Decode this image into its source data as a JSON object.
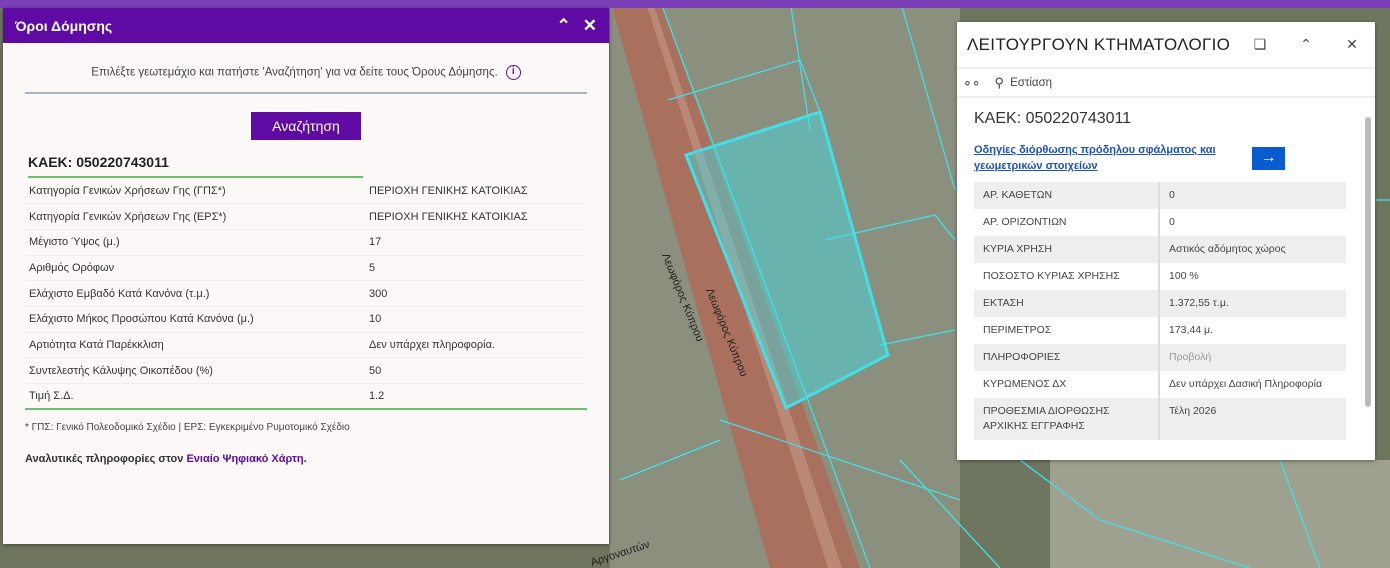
{
  "map": {
    "street_1": "Λεωφόρος Κύπρου",
    "street_2": "Αργοναυτών",
    "parcel_color": "#40e0e8",
    "road_color": "#9a5a4a"
  },
  "left_panel": {
    "title": "Όροι Δόμησης",
    "collapse_icon": "double-chevron-up",
    "close_icon": "close",
    "intro": "Επιλέξτε γεωτεμάχιο και πατήστε 'Αναζήτηση' για να δείτε τους Όρους Δόμησης.",
    "search_button": "Αναζήτηση",
    "kaek": "ΚΑΕΚ: 050220743011",
    "rows": [
      {
        "label": "Κατηγορία Γενικών Χρήσεων Γης (ΓΠΣ*)",
        "value": "ΠΕΡΙΟΧΗ ΓΕΝΙΚΗΣ ΚΑΤΟΙΚΙΑΣ"
      },
      {
        "label": "Κατηγορία Γενικών Χρήσεων Γης (ΕΡΣ*)",
        "value": "ΠΕΡΙΟΧΗ ΓΕΝΙΚΗΣ ΚΑΤΟΙΚΙΑΣ"
      },
      {
        "label": "Μέγιστο Ύψος (μ.)",
        "value": "17"
      },
      {
        "label": "Αριθμός Ορόφων",
        "value": "5"
      },
      {
        "label": "Ελάχιστο Εμβαδό Κατά Κανόνα (τ.μ.)",
        "value": "300"
      },
      {
        "label": "Ελάχιστο Μήκος Προσώπου Κατά Κανόνα (μ.)",
        "value": "10"
      },
      {
        "label": "Αρτιότητα Κατά Παρέκκλιση",
        "value": "Δεν υπάρχει πληροφορία."
      },
      {
        "label": "Συντελεστής Κάλυψης Οικοπέδου (%)",
        "value": "50"
      },
      {
        "label": "Τιμή Σ.Δ.",
        "value": "1.2"
      }
    ],
    "footnote": "* ΓΠΣ: Γενικό Πολεοδομικό Σχέδιο | ΕΡΣ: Εγκεκριμένο Ρυμοτομικό Σχέδιο",
    "more_prefix": "Αναλυτικές πληροφορίες στον ",
    "more_link": "Ενιαίο Ψηφιακό Χάρτη",
    "more_suffix": ".",
    "accent": "#5e0aa3"
  },
  "right_panel": {
    "title": "ΛΕΙΤΟΥΡΓΟΥΝ ΚΤΗΜΑΤΟΛΟΓΙΟ",
    "zoom_label": "Εστίαση",
    "kaek": "ΚΑΕΚ: 050220743011",
    "link": "Οδηγίες διόρθωσης πρόδηλου σφάλματος και γεωμετρικών στοιχείων",
    "arrow": "→",
    "rows": [
      {
        "label": "ΑΡ. ΚΑΘΕΤΩΝ",
        "value": "0"
      },
      {
        "label": "ΑΡ. ΟΡΙΖΟΝΤΙΩΝ",
        "value": "0"
      },
      {
        "label": "ΚΥΡΙΑ ΧΡΗΣΗ",
        "value": "Αστικός αδόμητος χώρος"
      },
      {
        "label": "ΠΟΣΟΣΤΟ ΚΥΡΙΑΣ ΧΡΗΣΗΣ",
        "value": "100 %"
      },
      {
        "label": "ΕΚΤΑΣΗ",
        "value": "1.372,55 τ.μ."
      },
      {
        "label": "ΠΕΡΙΜΕΤΡΟΣ",
        "value": "173,44 μ."
      },
      {
        "label": "ΠΛΗΡΟΦΟΡΙΕΣ",
        "value": "Προβολή"
      },
      {
        "label": "ΚΥΡΩΜΕΝΟΣ ΔΧ",
        "value": "Δεν υπάρχει Δασική Πληροφορία"
      },
      {
        "label": "ΠΡΟΘΕΣΜΙΑ ΔΙΟΡΘΩΣΗΣ ΑΡΧΙΚΗΣ ΕΓΓΡΑΦΗΣ",
        "value": "Τέλη 2026"
      }
    ],
    "link_color": "#1a52c4",
    "button_color": "#0a5bd0"
  }
}
